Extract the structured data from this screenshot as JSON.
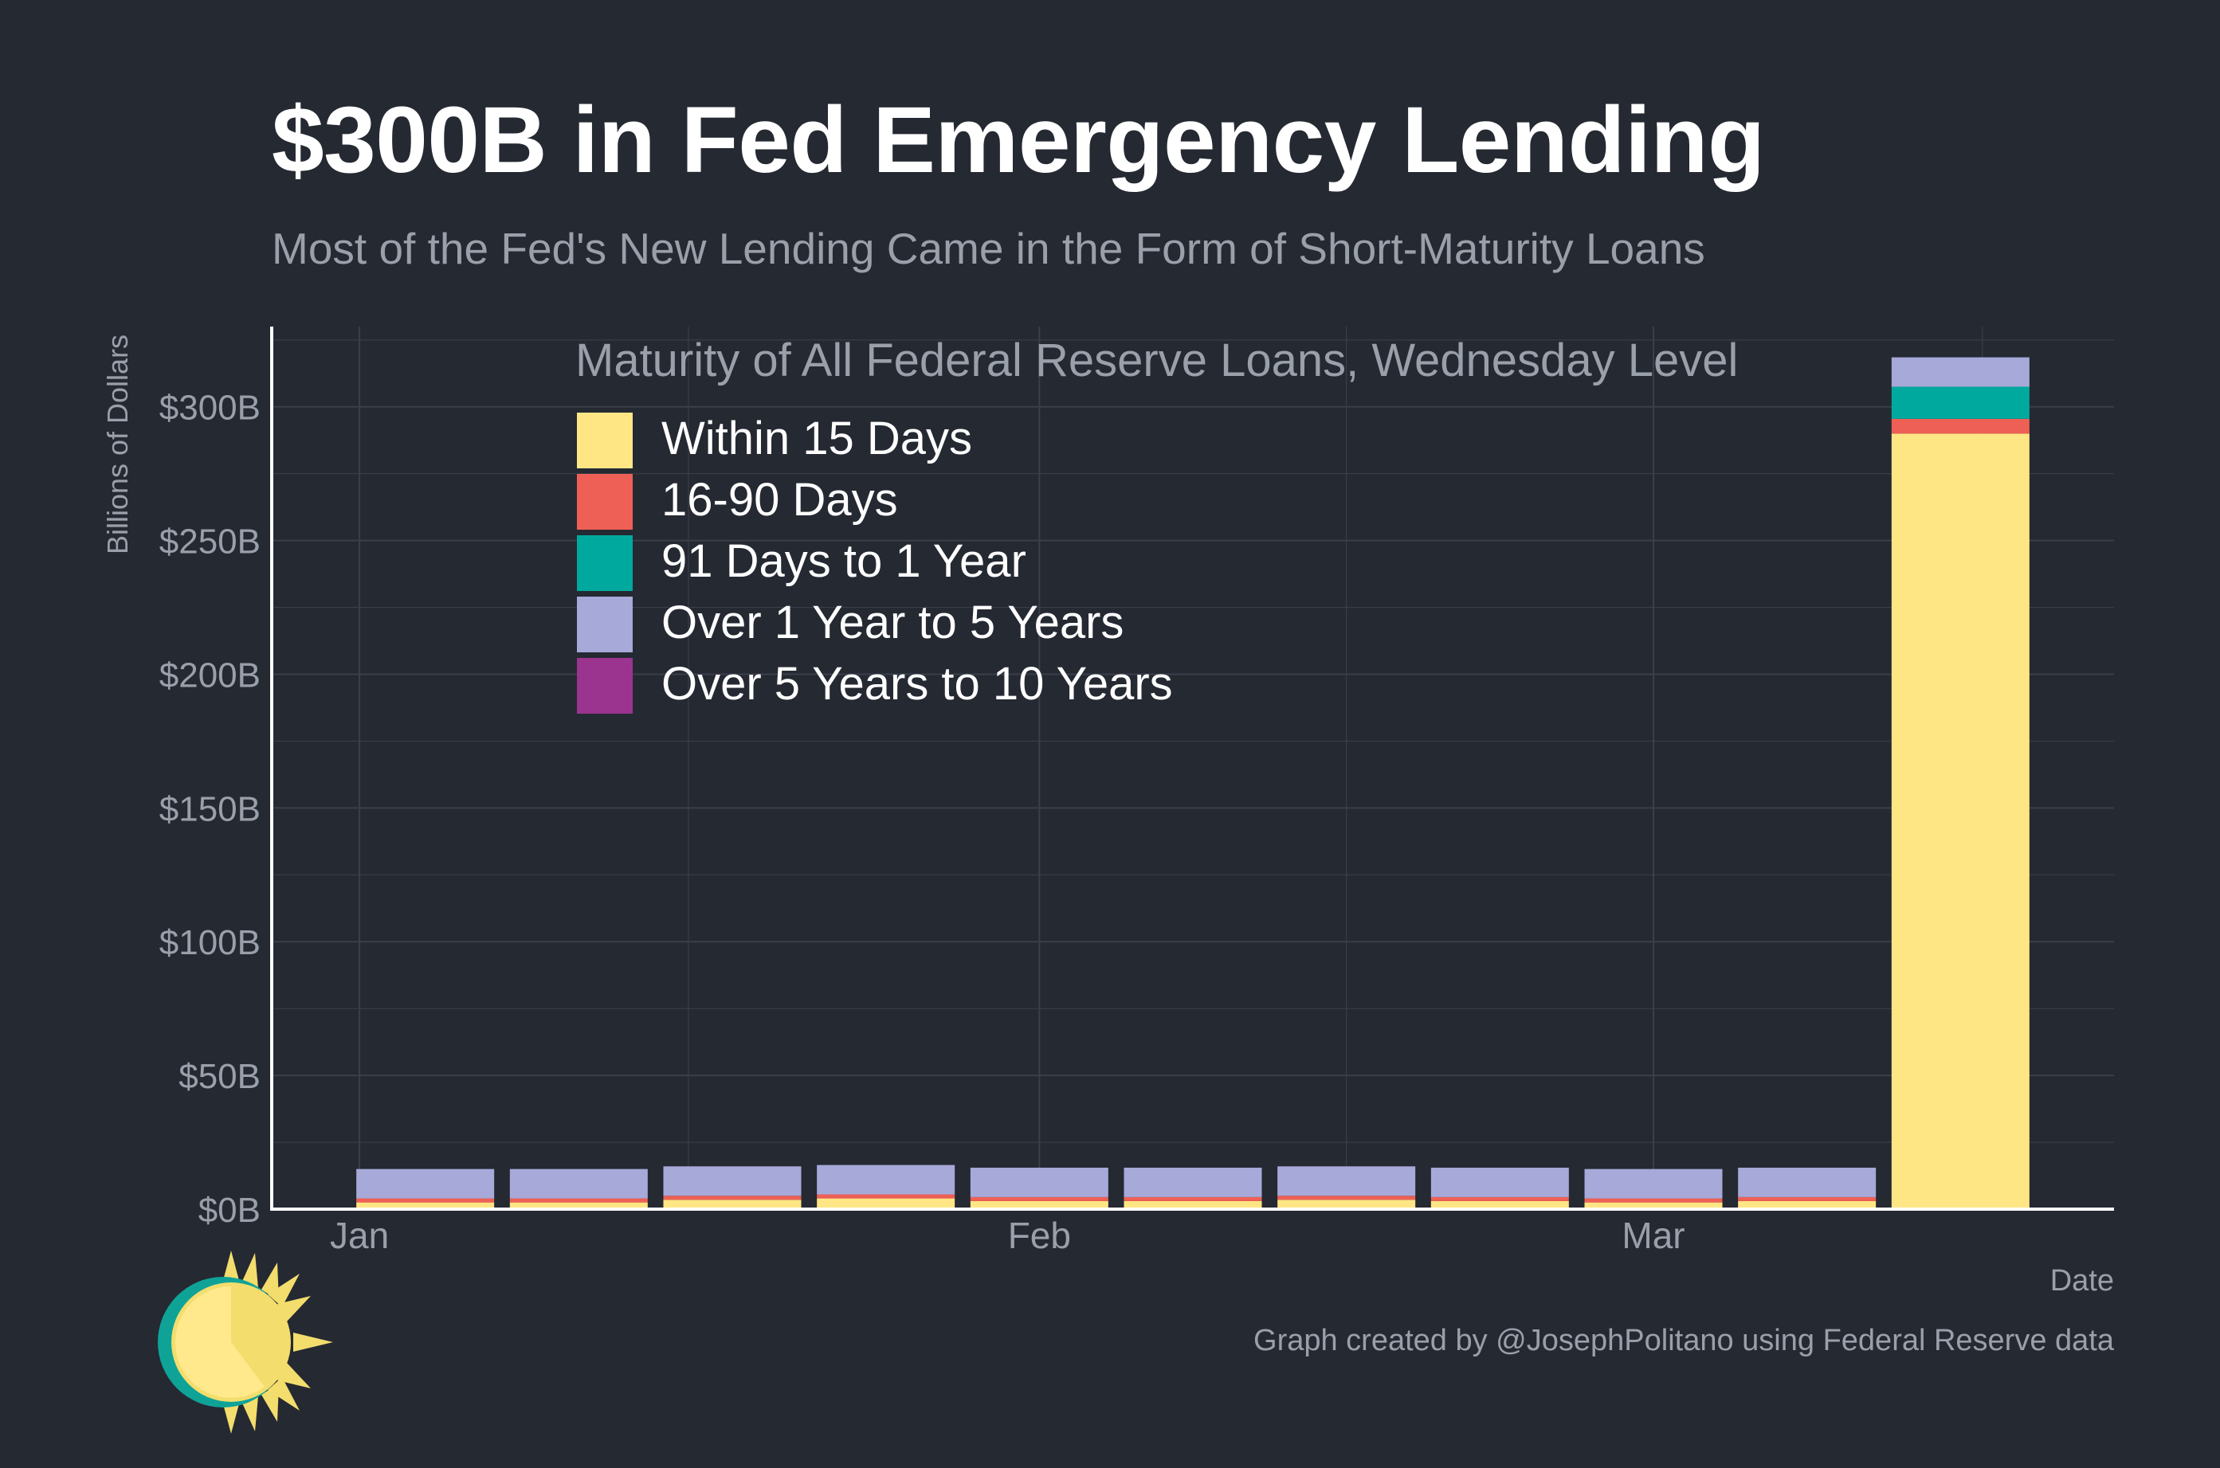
{
  "title": "$300B in Fed Emergency Lending",
  "subtitle": "Most of the Fed's New Lending Came in the Form of Short-Maturity Loans",
  "caption": "Graph created by @JosephPolitano using Federal Reserve data",
  "chart_data": {
    "type": "bar",
    "stacked": true,
    "legend_title": "Maturity of All Federal Reserve Loans, Wednesday Level",
    "legend_position": "top-left",
    "ylabel": "Billions of Dollars",
    "xlabel": "Date",
    "ylim": [
      0,
      330
    ],
    "yticks": [
      0,
      50,
      100,
      150,
      200,
      250,
      300
    ],
    "ytick_labels": [
      "$0B",
      "$50B",
      "$100B",
      "$150B",
      "$200B",
      "$250B",
      "$300B"
    ],
    "x": [
      "2023-01-04",
      "2023-01-11",
      "2023-01-18",
      "2023-01-25",
      "2023-02-01",
      "2023-02-08",
      "2023-02-15",
      "2023-02-22",
      "2023-03-01",
      "2023-03-08",
      "2023-03-15"
    ],
    "xticks": [
      {
        "date": "2023-01-01",
        "label": "Jan"
      },
      {
        "date": "2023-02-01",
        "label": "Feb"
      },
      {
        "date": "2023-03-01",
        "label": "Mar"
      }
    ],
    "grid": true,
    "series": [
      {
        "name": "Within 15 Days",
        "color": "#FFE685",
        "values": [
          2.5,
          2.5,
          3.5,
          4.0,
          3.0,
          3.0,
          3.5,
          3.0,
          2.5,
          3.0,
          290.0
        ]
      },
      {
        "name": "16-90 Days",
        "color": "#EE6055",
        "values": [
          1.5,
          1.5,
          1.5,
          1.5,
          1.5,
          1.5,
          1.5,
          1.5,
          1.5,
          1.5,
          5.5
        ]
      },
      {
        "name": "91 Days to 1 Year",
        "color": "#00A99D",
        "values": [
          0.0,
          0.0,
          0.0,
          0.0,
          0.0,
          0.0,
          0.0,
          0.0,
          0.0,
          0.0,
          12.0
        ]
      },
      {
        "name": "Over 1 Year to 5 Years",
        "color": "#A7A9D9",
        "values": [
          11.0,
          11.0,
          11.0,
          11.0,
          11.0,
          11.0,
          11.0,
          11.0,
          11.0,
          11.0,
          11.0
        ]
      },
      {
        "name": "Over 5 Years to 10 Years",
        "color": "#9A348E",
        "values": [
          0,
          0,
          0,
          0,
          0,
          0,
          0,
          0,
          0,
          0,
          0
        ]
      }
    ]
  },
  "colors": {
    "background": "#252932",
    "grid": "#3a3f4a",
    "axis": "#ffffff",
    "muted_text": "#9aa0aa"
  },
  "logo": {
    "icon": "sun-logo-icon"
  }
}
